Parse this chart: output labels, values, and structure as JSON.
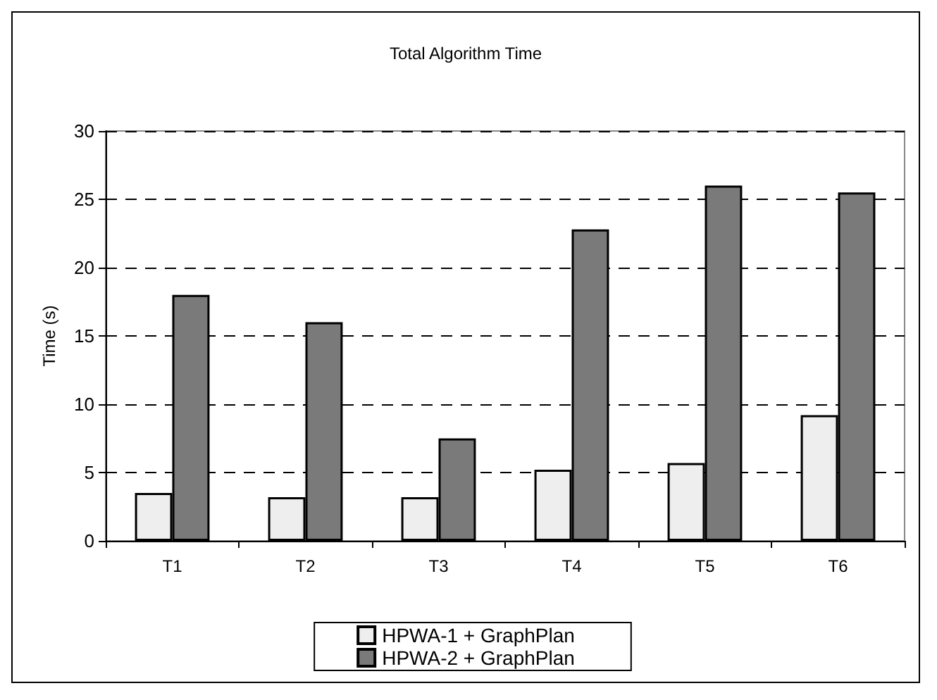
{
  "chart_data": {
    "type": "bar",
    "title": "Total Algorithm Time",
    "ylabel": "Time (s)",
    "categories": [
      "T1",
      "T2",
      "T3",
      "T4",
      "T5",
      "T6"
    ],
    "series": [
      {
        "name": "HPWA-1 + GraphPlan",
        "color": "#eeeeee",
        "values": [
          3.5,
          3.2,
          3.2,
          5.2,
          5.7,
          9.2
        ]
      },
      {
        "name": "HPWA-2 + GraphPlan",
        "color": "#7a7a7a",
        "values": [
          18,
          16,
          7.5,
          22.8,
          26,
          25.5
        ]
      }
    ],
    "ylim": [
      0,
      30
    ],
    "yticks": [
      0,
      5,
      10,
      15,
      20,
      25,
      30
    ],
    "grid": "y",
    "legend": "bottom"
  }
}
